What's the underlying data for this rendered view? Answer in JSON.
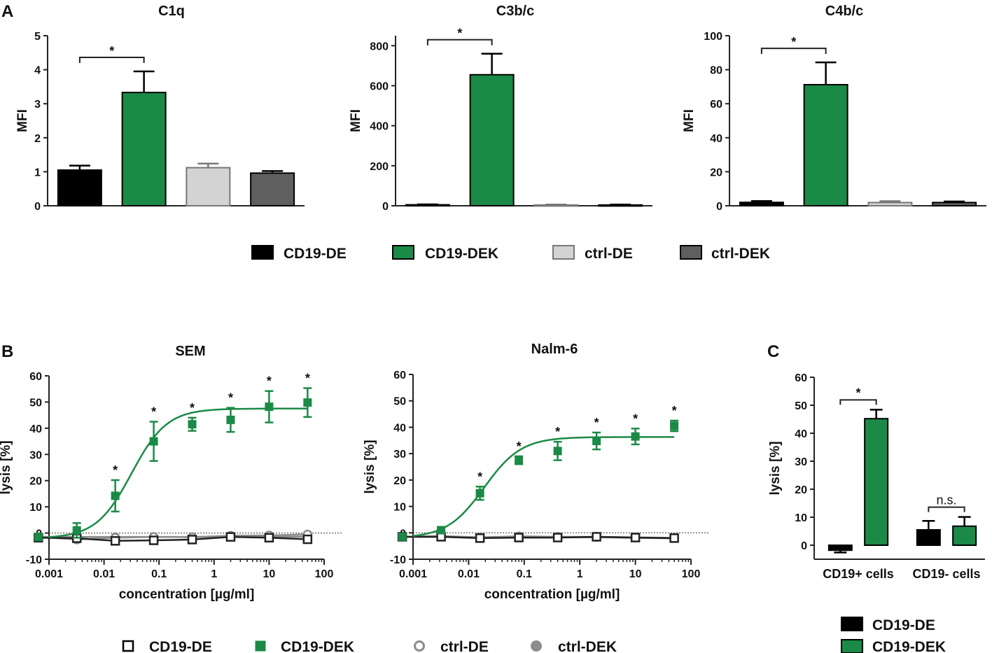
{
  "panel_labels": {
    "a": "A",
    "b": "B",
    "c": "C"
  },
  "colors": {
    "cd19_de": "#000000",
    "cd19_dek": "#1b8a46",
    "ctrl_de": "#d3d3d3",
    "ctrl_dek": "#5f5f5f",
    "curve_grey": "#8c8c8c"
  },
  "legend_a": [
    {
      "label": "CD19-DE"
    },
    {
      "label": "CD19-DEK"
    },
    {
      "label": "ctrl-DE"
    },
    {
      "label": "ctrl-DEK"
    }
  ],
  "legend_b": [
    {
      "label": "CD19-DE"
    },
    {
      "label": "CD19-DEK"
    },
    {
      "label": "ctrl-DE"
    },
    {
      "label": "ctrl-DEK"
    }
  ],
  "legend_c": [
    {
      "label": "CD19-DE"
    },
    {
      "label": "CD19-DEK"
    }
  ],
  "chart_data": [
    {
      "id": "c1q",
      "type": "bar",
      "title": "C1q",
      "xlabel": "",
      "ylabel": "MFI",
      "ylim": [
        0,
        5
      ],
      "yticks": [
        0,
        1,
        2,
        3,
        4,
        5
      ],
      "categories": [
        "CD19-DE",
        "CD19-DEK",
        "ctrl-DE",
        "ctrl-DEK"
      ],
      "values": [
        1.05,
        3.33,
        1.12,
        0.96
      ],
      "errors": [
        0.13,
        0.62,
        0.12,
        0.06
      ],
      "significance": [
        {
          "from": 0,
          "to": 1,
          "label": "*"
        }
      ]
    },
    {
      "id": "c3bc",
      "type": "bar",
      "title": "C3b/c",
      "xlabel": "",
      "ylabel": "MFI",
      "ylim": [
        0,
        850
      ],
      "yticks": [
        0,
        200,
        400,
        600,
        800
      ],
      "categories": [
        "CD19-DE",
        "CD19-DEK",
        "ctrl-DE",
        "ctrl-DEK"
      ],
      "values": [
        5,
        655,
        4,
        4
      ],
      "errors": [
        2,
        105,
        2,
        2
      ],
      "significance": [
        {
          "from": 0,
          "to": 1,
          "label": "*"
        }
      ]
    },
    {
      "id": "c4bc",
      "type": "bar",
      "title": "C4b/c",
      "xlabel": "",
      "ylabel": "MFI",
      "ylim": [
        0,
        100
      ],
      "yticks": [
        0,
        20,
        40,
        60,
        80,
        100
      ],
      "categories": [
        "CD19-DE",
        "CD19-DEK",
        "ctrl-DE",
        "ctrl-DEK"
      ],
      "values": [
        2.0,
        71.2,
        1.9,
        1.9
      ],
      "errors": [
        0.8,
        13.1,
        0.8,
        0.6
      ],
      "significance": [
        {
          "from": 0,
          "to": 1,
          "label": "*"
        }
      ]
    },
    {
      "id": "sem",
      "type": "line",
      "title": "SEM",
      "xscale": "log",
      "xlabel": "concentration [µg/ml]",
      "ylabel": "lysis [%]",
      "xlim": [
        0.001,
        100
      ],
      "ylim": [
        -10,
        60
      ],
      "yticks": [
        -10,
        0,
        10,
        20,
        30,
        40,
        50,
        60
      ],
      "xticks": [
        0.001,
        0.01,
        0.1,
        1,
        10,
        100
      ],
      "xticklabels": [
        "0.001",
        "0.01",
        "0.1",
        "1",
        "10",
        "100"
      ],
      "x": [
        0.00064,
        0.0032,
        0.016,
        0.08,
        0.4,
        2,
        10,
        50
      ],
      "series": [
        {
          "name": "CD19-DEK",
          "values": [
            -1.5,
            1,
            14.2,
            35,
            41.5,
            43.2,
            48.2,
            49.8
          ],
          "errors": [
            0.6,
            2.8,
            6,
            7.5,
            2.5,
            4.6,
            6,
            5.5
          ],
          "fit": {
            "bottom": -2,
            "top": 47.5,
            "log_ec50": -1.5,
            "hill": 1.35
          },
          "significant": [
            false,
            false,
            true,
            true,
            true,
            true,
            true,
            true
          ]
        },
        {
          "name": "CD19-DE",
          "values": [
            -1.8,
            -2,
            -3,
            -2.8,
            -2.5,
            -1.5,
            -1.8,
            -2.4
          ],
          "errors": [
            0.6,
            0.8,
            1,
            0.8,
            0.8,
            0.8,
            0.6,
            0.8
          ]
        },
        {
          "name": "ctrl-DE",
          "values": [
            -1.5,
            -2.5,
            -1.8,
            -1.5,
            -1.6,
            -1,
            -0.9,
            -0.5
          ],
          "errors": [
            0.5,
            0.5,
            0.5,
            0.5,
            0.5,
            0.5,
            0.5,
            0.5
          ]
        },
        {
          "name": "ctrl-DEK",
          "values": [
            -1.5,
            -1.5,
            -1.5,
            -1.5,
            -1.5,
            -1.4,
            -1.4,
            -1.4
          ],
          "errors": [
            0.4,
            0.4,
            0.4,
            0.4,
            0.4,
            0.4,
            0.4,
            0.4
          ]
        }
      ]
    },
    {
      "id": "nalm6",
      "type": "line",
      "title": "Nalm-6",
      "xscale": "log",
      "xlabel": "concentration [µg/ml]",
      "ylabel": "lysis [%]",
      "xlim": [
        0.001,
        100
      ],
      "ylim": [
        -10,
        60
      ],
      "yticks": [
        -10,
        0,
        10,
        20,
        30,
        40,
        50,
        60
      ],
      "xticks": [
        0.001,
        0.01,
        0.1,
        1,
        10,
        100
      ],
      "xticklabels": [
        "0.001",
        "0.01",
        "0.1",
        "1",
        "10",
        "100"
      ],
      "x": [
        0.00064,
        0.0032,
        0.016,
        0.08,
        0.4,
        2,
        10,
        50
      ],
      "series": [
        {
          "name": "CD19-DEK",
          "values": [
            -1.5,
            1,
            15,
            27.5,
            31,
            34.8,
            36.5,
            40.5
          ],
          "errors": [
            0.4,
            0.8,
            2.5,
            1.5,
            3.5,
            3.2,
            3,
            2
          ],
          "fit": {
            "bottom": -2,
            "top": 36.3,
            "log_ec50": -1.72,
            "hill": 1.3
          },
          "significant": [
            false,
            false,
            true,
            true,
            true,
            true,
            true,
            true
          ]
        },
        {
          "name": "CD19-DE",
          "values": [
            -1.5,
            -1.5,
            -2,
            -1.8,
            -1.8,
            -1.5,
            -1.8,
            -2
          ],
          "errors": [
            0.5,
            0.5,
            0.5,
            0.5,
            0.5,
            0.5,
            0.5,
            0.5
          ]
        },
        {
          "name": "ctrl-DE",
          "values": [
            -1.5,
            -1.2,
            -1.7,
            -1.3,
            -1.5,
            -1.5,
            -1.7,
            -1.9
          ],
          "errors": [
            0.4,
            0.4,
            0.4,
            0.4,
            0.4,
            0.4,
            0.4,
            0.4
          ]
        },
        {
          "name": "ctrl-DEK",
          "values": [
            -1.5,
            -1.5,
            -1.8,
            -1.5,
            -1.7,
            -1.7,
            -1.9,
            -2.1
          ],
          "errors": [
            0.4,
            0.4,
            0.4,
            0.4,
            0.4,
            0.4,
            0.4,
            0.4
          ]
        }
      ]
    },
    {
      "id": "c_lysis",
      "type": "bar",
      "title": "",
      "xlabel": "",
      "ylabel": "lysis [%]",
      "ylim": [
        -5,
        60
      ],
      "yticks": [
        0,
        10,
        20,
        30,
        40,
        50,
        60
      ],
      "categories": [
        "CD19+ cells",
        "CD19- cells"
      ],
      "series": [
        {
          "name": "CD19-DE",
          "values": [
            -1.8,
            5.5
          ],
          "errors": [
            0.8,
            3.2
          ]
        },
        {
          "name": "CD19-DEK",
          "values": [
            45.2,
            6.8
          ],
          "errors": [
            3.2,
            3.3
          ]
        }
      ],
      "significance": [
        {
          "category": 0,
          "label": "*"
        },
        {
          "category": 1,
          "label": "n.s."
        }
      ]
    }
  ]
}
